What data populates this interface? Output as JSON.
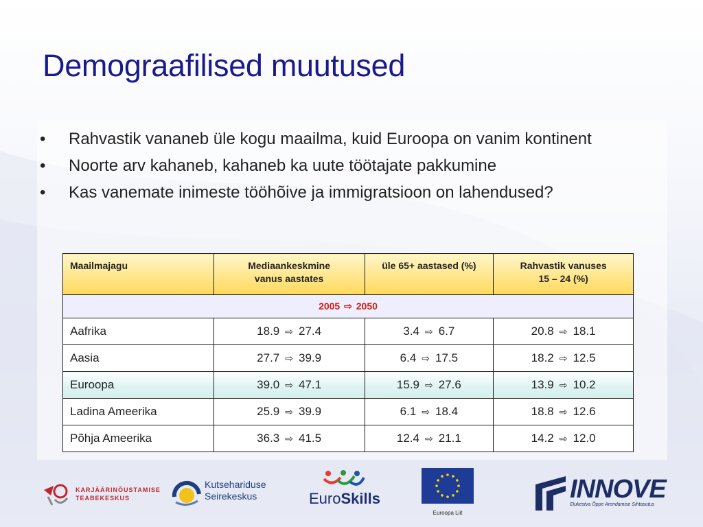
{
  "slide": {
    "title": "Demograafilised muutused",
    "bullets": [
      "Rahvastik vananeb üle kogu maailma, kuid Euroopa on vanim kontinent",
      "Noorte arv kahaneb, kahaneb ka uute töötajate pakkumine",
      "Kas vanemate inimeste tööhõive ja immigratsioon on lahendused?"
    ]
  },
  "table": {
    "headers": {
      "region": "Maailmajagu",
      "median_line1": "Mediaankeskmine",
      "median_line2": "vanus aastates",
      "over65": "üle 65+ aastased (%)",
      "youth_line1": "Rahvastik vanuses",
      "youth_line2": "15 – 24 (%)"
    },
    "period": {
      "from": "2005",
      "to": "2050"
    },
    "arrow_icon": "⇨",
    "rows": [
      {
        "region": "Aafrika",
        "median": [
          "18.9",
          "27.4"
        ],
        "over65": [
          "3.4",
          "6.7"
        ],
        "youth": [
          "20.8",
          "18.1"
        ]
      },
      {
        "region": "Aasia",
        "median": [
          "27.7",
          "39.9"
        ],
        "over65": [
          "6.4",
          "17.5"
        ],
        "youth": [
          "18.2",
          "12.5"
        ]
      },
      {
        "region": "Euroopa",
        "median": [
          "39.0",
          "47.1"
        ],
        "over65": [
          "15.9",
          "27.6"
        ],
        "youth": [
          "13.9",
          "10.2"
        ]
      },
      {
        "region": "Ladina Ameerika",
        "median": [
          "25.9",
          "39.9"
        ],
        "over65": [
          "6.1",
          "18.4"
        ],
        "youth": [
          "18.8",
          "12.6"
        ]
      },
      {
        "region": "Põhja Ameerika",
        "median": [
          "36.3",
          "41.5"
        ],
        "over65": [
          "12.4",
          "21.1"
        ],
        "youth": [
          "14.2",
          "12.0"
        ]
      }
    ]
  },
  "logos": {
    "karjaar": {
      "line1": "KARJÄÄRINÕUSTAMISE",
      "line2": "TEABEKESKUS"
    },
    "kutse": {
      "line1": "Kutsehariduse",
      "line2": "Seirekeskus"
    },
    "euroskills": {
      "euro": "Euro",
      "skills": "Skills"
    },
    "eu": {
      "caption": "Euroopa Liit"
    },
    "innove": {
      "name": "INNOVE",
      "tagline": "Elukestva Õppe Arendamise Sihtasutus"
    }
  },
  "colors": {
    "title": "#1a1a8c",
    "header_gradient_top": "#fff6c9",
    "header_gradient_bottom": "#ffd95a",
    "period_text": "#d01f10",
    "highlight_row": "#d5efec"
  }
}
